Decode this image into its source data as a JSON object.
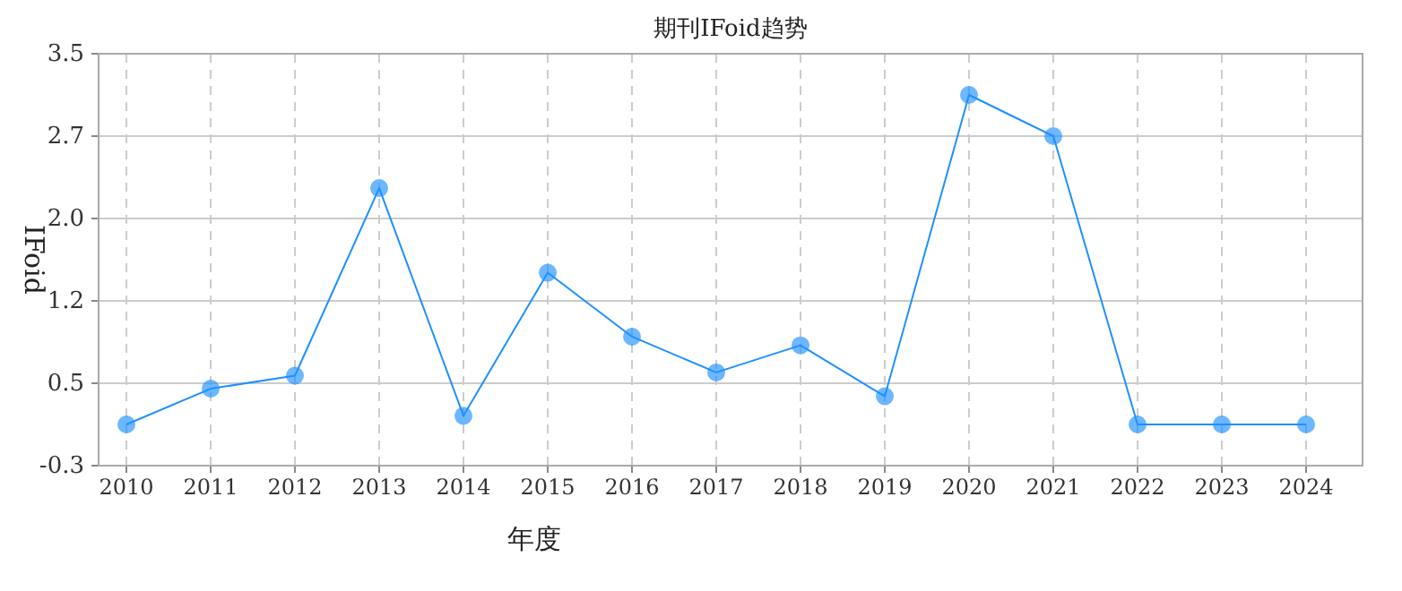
{
  "chart_data": {
    "type": "line",
    "title": "期刊IFoid趋势",
    "xlabel": "年度",
    "ylabel": "IFoid",
    "categories": [
      "2010",
      "2011",
      "2012",
      "2013",
      "2014",
      "2015",
      "2016",
      "2017",
      "2018",
      "2019",
      "2020",
      "2021",
      "2022",
      "2023",
      "2024"
    ],
    "series": [
      {
        "color": "#1e90ff",
        "values": [
          0.08,
          0.41,
          0.53,
          2.26,
          0.16,
          1.48,
          0.89,
          0.56,
          0.81,
          0.34,
          3.12,
          2.74,
          0.08,
          0.08,
          0.08
        ]
      }
    ],
    "ylim": [
      -0.3,
      3.5
    ],
    "yticks": [
      {
        "value": -0.3,
        "label": "-0.3"
      },
      {
        "value": 0.46,
        "label": "0.5"
      },
      {
        "value": 1.22,
        "label": "1.2"
      },
      {
        "value": 1.98,
        "label": "2.0"
      },
      {
        "value": 2.74,
        "label": "2.7"
      },
      {
        "value": 3.5,
        "label": "3.5"
      }
    ],
    "grid": true,
    "marker": "circle"
  }
}
